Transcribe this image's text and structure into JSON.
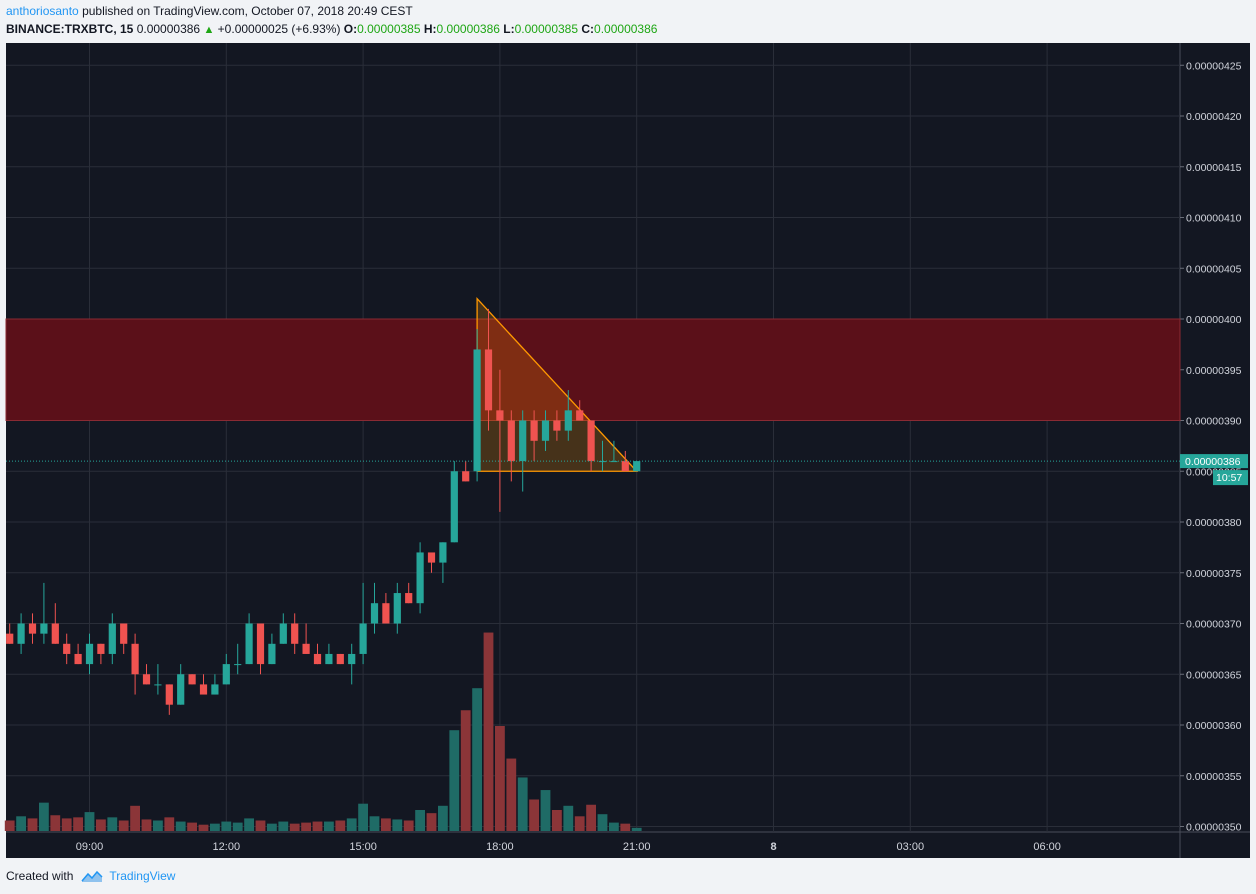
{
  "header": {
    "author": "anthoriosanto",
    "published": " published on TradingView.com, October 07, 2018 20:49 CEST",
    "symbol": "BINANCE:TRXBTC, 15",
    "last": "0.00000386",
    "change": "+0.00000025 (+6.93%)",
    "o_label": "O:",
    "o": "0.00000385",
    "h_label": "H:",
    "h": "0.00000386",
    "l_label": "L:",
    "l": "0.00000385",
    "c_label": "C:",
    "c": "0.00000386"
  },
  "footer": {
    "created": "Created with",
    "brand": "TradingView"
  },
  "colors": {
    "background": "#131722",
    "grid": "#2a2e39",
    "up": "#26a69a",
    "down": "#ef5350",
    "resistance_zone": "#5b1019",
    "triangle": "#ff9800",
    "price_label": "#26a69a"
  },
  "chart_data": {
    "type": "candlestick",
    "symbol": "BINANCE:TRXBTC",
    "interval": "15",
    "ylim": [
      3.5e-06,
      4.27e-06
    ],
    "y_ticks": [
      "0.00000425",
      "0.00000420",
      "0.00000415",
      "0.00000410",
      "0.00000405",
      "0.00000400",
      "0.00000395",
      "0.00000390",
      "0.00000385",
      "0.00000380",
      "0.00000375",
      "0.00000370",
      "0.00000365",
      "0.00000360",
      "0.00000355",
      "0.00000350"
    ],
    "y_tick_values": [
      425,
      420,
      415,
      410,
      405,
      400,
      395,
      390,
      385,
      380,
      375,
      370,
      365,
      360,
      355,
      350
    ],
    "x_ticks": [
      "09:00",
      "12:00",
      "15:00",
      "18:00",
      "21:00",
      "8",
      "03:00",
      "06:00"
    ],
    "x_tick_bar_index": [
      7,
      19,
      31,
      43,
      55,
      67,
      79,
      91
    ],
    "y_unit": "1e-8 BTC",
    "last_price": "0.00000386",
    "countdown": "10:57",
    "resistance_zone": {
      "from": 390,
      "to": 400
    },
    "descending_triangle": {
      "top": [
        41,
        402
      ],
      "bottom_left": [
        41,
        385
      ],
      "bottom_right": [
        55,
        385
      ]
    },
    "candles": [
      {
        "o": 369,
        "h": 370,
        "l": 368,
        "c": 368,
        "v": 1.0
      },
      {
        "o": 368,
        "h": 371,
        "l": 367,
        "c": 370,
        "v": 1.4
      },
      {
        "o": 370,
        "h": 371,
        "l": 368,
        "c": 369,
        "v": 1.2
      },
      {
        "o": 369,
        "h": 374,
        "l": 368,
        "c": 370,
        "v": 2.7
      },
      {
        "o": 370,
        "h": 372,
        "l": 368,
        "c": 368,
        "v": 1.5
      },
      {
        "o": 368,
        "h": 369,
        "l": 366,
        "c": 367,
        "v": 1.2
      },
      {
        "o": 367,
        "h": 368,
        "l": 366,
        "c": 366,
        "v": 1.3
      },
      {
        "o": 366,
        "h": 369,
        "l": 365,
        "c": 368,
        "v": 1.8
      },
      {
        "o": 368,
        "h": 368,
        "l": 366,
        "c": 367,
        "v": 1.1
      },
      {
        "o": 367,
        "h": 371,
        "l": 366,
        "c": 370,
        "v": 1.3
      },
      {
        "o": 370,
        "h": 370,
        "l": 367,
        "c": 368,
        "v": 1.0
      },
      {
        "o": 368,
        "h": 369,
        "l": 363,
        "c": 365,
        "v": 2.4
      },
      {
        "o": 365,
        "h": 366,
        "l": 364,
        "c": 364,
        "v": 1.1
      },
      {
        "o": 364,
        "h": 366,
        "l": 363,
        "c": 364,
        "v": 1.0
      },
      {
        "o": 364,
        "h": 364,
        "l": 361,
        "c": 362,
        "v": 1.3
      },
      {
        "o": 362,
        "h": 366,
        "l": 362,
        "c": 365,
        "v": 0.9
      },
      {
        "o": 365,
        "h": 365,
        "l": 364,
        "c": 364,
        "v": 0.8
      },
      {
        "o": 364,
        "h": 365,
        "l": 363,
        "c": 363,
        "v": 0.6
      },
      {
        "o": 363,
        "h": 365,
        "l": 363,
        "c": 364,
        "v": 0.7
      },
      {
        "o": 364,
        "h": 367,
        "l": 364,
        "c": 366,
        "v": 0.9
      },
      {
        "o": 366,
        "h": 368,
        "l": 365,
        "c": 366,
        "v": 0.8
      },
      {
        "o": 366,
        "h": 371,
        "l": 366,
        "c": 370,
        "v": 1.2
      },
      {
        "o": 370,
        "h": 370,
        "l": 365,
        "c": 366,
        "v": 1.0
      },
      {
        "o": 366,
        "h": 369,
        "l": 366,
        "c": 368,
        "v": 0.7
      },
      {
        "o": 368,
        "h": 371,
        "l": 368,
        "c": 370,
        "v": 0.9
      },
      {
        "o": 370,
        "h": 371,
        "l": 367,
        "c": 368,
        "v": 0.7
      },
      {
        "o": 368,
        "h": 370,
        "l": 367,
        "c": 367,
        "v": 0.8
      },
      {
        "o": 367,
        "h": 368,
        "l": 366,
        "c": 366,
        "v": 0.9
      },
      {
        "o": 366,
        "h": 368,
        "l": 366,
        "c": 367,
        "v": 0.9
      },
      {
        "o": 367,
        "h": 367,
        "l": 366,
        "c": 366,
        "v": 1.0
      },
      {
        "o": 366,
        "h": 368,
        "l": 364,
        "c": 367,
        "v": 1.2
      },
      {
        "o": 367,
        "h": 374,
        "l": 366,
        "c": 370,
        "v": 2.6
      },
      {
        "o": 370,
        "h": 374,
        "l": 369,
        "c": 372,
        "v": 1.4
      },
      {
        "o": 372,
        "h": 373,
        "l": 370,
        "c": 370,
        "v": 1.2
      },
      {
        "o": 370,
        "h": 374,
        "l": 369,
        "c": 373,
        "v": 1.1
      },
      {
        "o": 373,
        "h": 374,
        "l": 372,
        "c": 372,
        "v": 1.0
      },
      {
        "o": 372,
        "h": 378,
        "l": 371,
        "c": 377,
        "v": 2.0
      },
      {
        "o": 377,
        "h": 377,
        "l": 375,
        "c": 376,
        "v": 1.7
      },
      {
        "o": 376,
        "h": 378,
        "l": 374,
        "c": 378,
        "v": 2.4
      },
      {
        "o": 378,
        "h": 386,
        "l": 378,
        "c": 385,
        "v": 9.6
      },
      {
        "o": 385,
        "h": 386,
        "l": 384,
        "c": 384,
        "v": 11.5
      },
      {
        "o": 385,
        "h": 399,
        "l": 384,
        "c": 397,
        "v": 13.6
      },
      {
        "o": 397,
        "h": 401,
        "l": 389,
        "c": 391,
        "v": 18.9
      },
      {
        "o": 391,
        "h": 395,
        "l": 381,
        "c": 390,
        "v": 10.0
      },
      {
        "o": 390,
        "h": 391,
        "l": 384,
        "c": 386,
        "v": 6.9
      },
      {
        "o": 386,
        "h": 391,
        "l": 383,
        "c": 390,
        "v": 5.1
      },
      {
        "o": 390,
        "h": 391,
        "l": 386,
        "c": 388,
        "v": 3.0
      },
      {
        "o": 388,
        "h": 391,
        "l": 387,
        "c": 390,
        "v": 3.9
      },
      {
        "o": 390,
        "h": 391,
        "l": 388,
        "c": 389,
        "v": 2.0
      },
      {
        "o": 389,
        "h": 393,
        "l": 388,
        "c": 391,
        "v": 2.4
      },
      {
        "o": 391,
        "h": 392,
        "l": 390,
        "c": 390,
        "v": 1.4
      },
      {
        "o": 390,
        "h": 390,
        "l": 385,
        "c": 386,
        "v": 2.5
      },
      {
        "o": 386,
        "h": 388,
        "l": 385,
        "c": 386,
        "v": 1.6
      },
      {
        "o": 386,
        "h": 388,
        "l": 386,
        "c": 386,
        "v": 0.8
      },
      {
        "o": 386,
        "h": 387,
        "l": 385,
        "c": 385,
        "v": 0.7
      },
      {
        "o": 385,
        "h": 386,
        "l": 385,
        "c": 386,
        "v": 0.3
      }
    ]
  }
}
